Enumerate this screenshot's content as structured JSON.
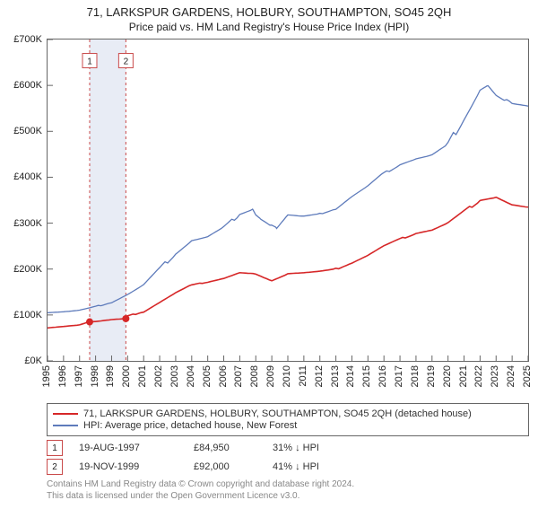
{
  "title_main": "71, LARKSPUR GARDENS, HOLBURY, SOUTHAMPTON, SO45 2QH",
  "title_sub": "Price paid vs. HM Land Registry's House Price Index (HPI)",
  "title_fontsize": 13,
  "subtitle_fontsize": 12,
  "chart": {
    "type": "line",
    "background_color": "#ffffff",
    "border_color": "#666666",
    "x": {
      "min": 1995,
      "max": 2025,
      "tick_step": 1,
      "label_fontsize": 11
    },
    "y": {
      "min": 0,
      "max": 700000,
      "tick_step": 100000,
      "label_prefix": "£",
      "label_suffix": "K",
      "label_fontsize": 11
    },
    "shaded_band": {
      "x_from": 1997.63,
      "x_to": 1999.89,
      "fill": "#e8ecf5"
    },
    "sale_lines": [
      {
        "x": 1997.63,
        "color": "#c94b4b",
        "dash": "3,3"
      },
      {
        "x": 1999.89,
        "color": "#c94b4b",
        "dash": "3,3"
      }
    ],
    "sale_markers": [
      {
        "label": "1",
        "x": 1997.63,
        "y": 654000,
        "border": "#c94b4b",
        "text_color": "#222222"
      },
      {
        "label": "2",
        "x": 1999.89,
        "y": 654000,
        "border": "#c94b4b",
        "text_color": "#222222"
      }
    ],
    "sale_points": [
      {
        "x": 1997.63,
        "y": 84950,
        "r": 4,
        "fill": "#d62728"
      },
      {
        "x": 1999.89,
        "y": 92000,
        "r": 4,
        "fill": "#d62728"
      }
    ],
    "series": [
      {
        "name": "price_paid",
        "label": "71, LARKSPUR GARDENS, HOLBURY, SOUTHAMPTON, SO45 2QH (detached house)",
        "color": "#d62728",
        "width": 1.6,
        "points": [
          [
            1995,
            72000
          ],
          [
            1996,
            75000
          ],
          [
            1997,
            78000
          ],
          [
            1997.63,
            84950
          ],
          [
            1998,
            86000
          ],
          [
            1999,
            90000
          ],
          [
            1999.89,
            92000
          ],
          [
            2000,
            97000
          ],
          [
            2001,
            108000
          ],
          [
            2002,
            128000
          ],
          [
            2003,
            148000
          ],
          [
            2004,
            165000
          ],
          [
            2005,
            172000
          ],
          [
            2006,
            180000
          ],
          [
            2007,
            192000
          ],
          [
            2008,
            190000
          ],
          [
            2009,
            176000
          ],
          [
            2010,
            190000
          ],
          [
            2011,
            192000
          ],
          [
            2012,
            195000
          ],
          [
            2013,
            200000
          ],
          [
            2014,
            214000
          ],
          [
            2015,
            230000
          ],
          [
            2016,
            250000
          ],
          [
            2017,
            265000
          ],
          [
            2018,
            278000
          ],
          [
            2019,
            285000
          ],
          [
            2020,
            300000
          ],
          [
            2021,
            325000
          ],
          [
            2022,
            350000
          ],
          [
            2023,
            356000
          ],
          [
            2024,
            340000
          ],
          [
            2025,
            335000
          ]
        ]
      },
      {
        "name": "hpi",
        "label": "HPI: Average price, detached house, New Forest",
        "color": "#5e7bbb",
        "width": 1.3,
        "points": [
          [
            1995,
            105000
          ],
          [
            1996,
            107000
          ],
          [
            1997,
            110000
          ],
          [
            1998,
            118000
          ],
          [
            1999,
            128000
          ],
          [
            2000,
            145000
          ],
          [
            2001,
            165000
          ],
          [
            2002,
            200000
          ],
          [
            2003,
            235000
          ],
          [
            2004,
            262000
          ],
          [
            2005,
            270000
          ],
          [
            2006,
            290000
          ],
          [
            2007,
            320000
          ],
          [
            2007.8,
            330000
          ],
          [
            2008,
            318000
          ],
          [
            2008.3,
            310000
          ],
          [
            2009,
            295000
          ],
          [
            2009.3,
            290000
          ],
          [
            2010,
            318000
          ],
          [
            2011,
            315000
          ],
          [
            2012,
            320000
          ],
          [
            2013,
            332000
          ],
          [
            2014,
            358000
          ],
          [
            2015,
            380000
          ],
          [
            2016,
            408000
          ],
          [
            2017,
            428000
          ],
          [
            2018,
            440000
          ],
          [
            2019,
            448000
          ],
          [
            2020,
            470000
          ],
          [
            2021,
            530000
          ],
          [
            2022,
            590000
          ],
          [
            2022.5,
            600000
          ],
          [
            2023,
            580000
          ],
          [
            2024,
            560000
          ],
          [
            2025,
            555000
          ]
        ]
      }
    ]
  },
  "legend": {
    "border_color": "#666666",
    "items": [
      {
        "color": "#d62728",
        "label": "71, LARKSPUR GARDENS, HOLBURY, SOUTHAMPTON, SO45 2QH (detached house)"
      },
      {
        "color": "#5e7bbb",
        "label": "HPI: Average price, detached house, New Forest"
      }
    ]
  },
  "sales_table": [
    {
      "marker": "1",
      "marker_border": "#c94b4b",
      "date": "19-AUG-1997",
      "price": "£84,950",
      "pct": "31% ↓ HPI"
    },
    {
      "marker": "2",
      "marker_border": "#c94b4b",
      "date": "19-NOV-1999",
      "price": "£92,000",
      "pct": "41% ↓ HPI"
    }
  ],
  "license_line1": "Contains HM Land Registry data © Crown copyright and database right 2024.",
  "license_line2": "This data is licensed under the Open Government Licence v3.0."
}
